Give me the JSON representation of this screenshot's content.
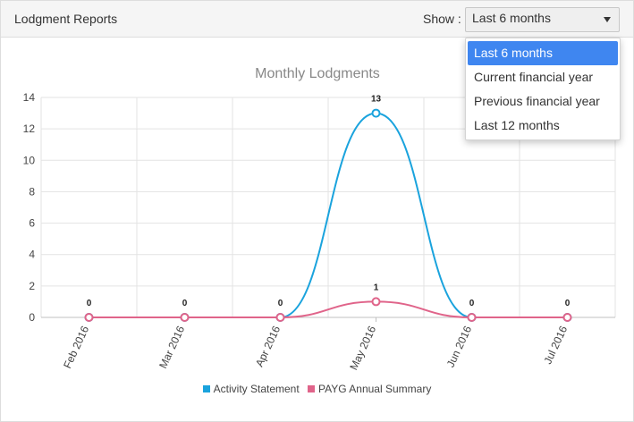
{
  "header": {
    "title": "Lodgment Reports",
    "show_label": "Show :"
  },
  "period_select": {
    "value": "Last 6 months",
    "options": [
      "Last 6 months",
      "Current financial year",
      "Previous financial year",
      "Last 12 months"
    ],
    "selected_index": 0,
    "arrow_icon": "caret-down-icon"
  },
  "colors": {
    "activity": "#1aa3dd",
    "payg": "#e0648a",
    "grid": "#e3e3e3",
    "accent": "#3f86f0"
  },
  "chart_data": {
    "type": "line",
    "title": "Monthly Lodgments",
    "categories": [
      "Feb 2016",
      "Mar 2016",
      "Apr 2016",
      "May 2016",
      "Jun 2016",
      "Jul 2016"
    ],
    "ylim": [
      0,
      14
    ],
    "yticks": [
      0,
      2,
      4,
      6,
      8,
      10,
      12,
      14
    ],
    "grid": true,
    "legend_position": "bottom",
    "series": [
      {
        "name": "Activity Statement",
        "values": [
          0,
          0,
          0,
          13,
          0,
          0
        ]
      },
      {
        "name": "PAYG Annual Summary",
        "values": [
          0,
          0,
          0,
          1,
          0,
          0
        ]
      }
    ]
  }
}
